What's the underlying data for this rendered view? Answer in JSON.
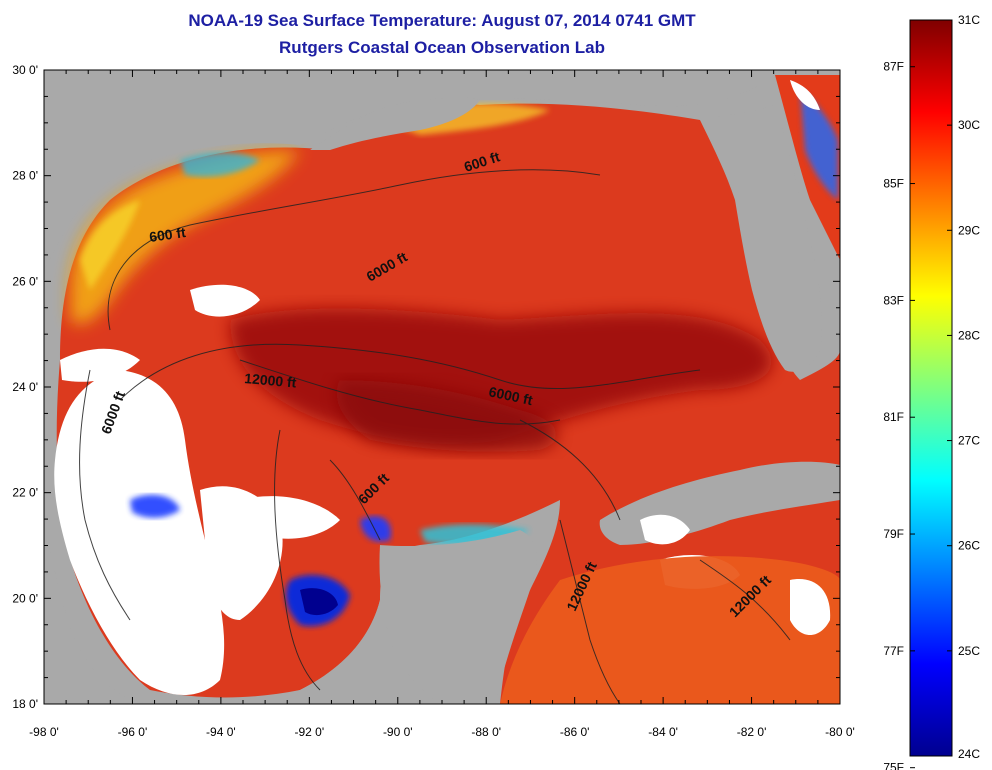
{
  "header": {
    "title": "NOAA-19 Sea Surface Temperature:  August 07, 2014 0741 GMT",
    "subtitle": "Rutgers Coastal Ocean Observation Lab"
  },
  "map": {
    "region": "Gulf of Mexico",
    "lon_ticks": [
      "-98 0'",
      "-96 0'",
      "-94 0'",
      "-92 0'",
      "-90 0'",
      "-88 0'",
      "-86 0'",
      "-84 0'",
      "-82 0'",
      "-80 0'"
    ],
    "lat_ticks": [
      "30 0'",
      "28 0'",
      "26 0'",
      "24 0'",
      "22 0'",
      "20 0'",
      "18 0'"
    ],
    "contour_labels": [
      "600 ft",
      "600 ft",
      "6000 ft",
      "12000 ft",
      "6000 ft",
      "6000 ft",
      "600 ft",
      "12000 ft",
      "12000 ft"
    ],
    "colors": {
      "land": "#a9a9a9",
      "no_data": "#ffffff",
      "cold": "#00008f",
      "warm": "#d93a1c",
      "hot": "#7f0000"
    }
  },
  "colorbar": {
    "celsius_labels": [
      "31C",
      "30C",
      "29C",
      "28C",
      "27C",
      "26C",
      "25C",
      "24C"
    ],
    "fahrenheit_labels": [
      "87F",
      "85F",
      "83F",
      "81F",
      "79F",
      "77F",
      "75F"
    ]
  }
}
